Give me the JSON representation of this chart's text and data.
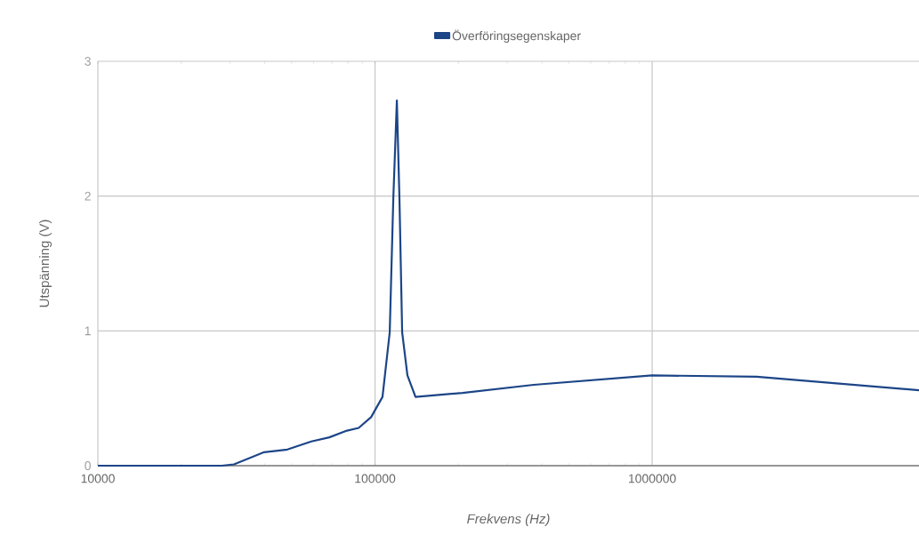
{
  "chart_data": {
    "type": "line",
    "xlabel": "Frekvens (Hz)",
    "ylabel": "Utspänning (V)",
    "log": "x",
    "xlim": [
      10000,
      9180000
    ],
    "ylim": [
      0,
      3
    ],
    "xticks": [
      10000,
      100000,
      1000000
    ],
    "yticks": [
      0,
      1,
      2,
      3
    ],
    "grid": true,
    "legend": "top",
    "marker": "none",
    "line_style": "solid",
    "series": [
      {
        "name": "Överföringsegenskaper",
        "color": "#1c4587",
        "x": [
          10000,
          20000,
          28000,
          30980,
          39800,
          48300,
          58900,
          68400,
          79200,
          87300,
          96800,
          106400,
          113000,
          116400,
          119900,
          122500,
          125300,
          130900,
          140000,
          207000,
          374000,
          1000000,
          2380000,
          9180000
        ],
        "values": [
          0,
          0,
          0,
          0.01,
          0.1,
          0.12,
          0.18,
          0.21,
          0.26,
          0.28,
          0.36,
          0.51,
          0.99,
          1.98,
          2.71,
          1.98,
          0.99,
          0.67,
          0.51,
          0.54,
          0.6,
          0.67,
          0.66,
          0.56
        ]
      }
    ]
  }
}
